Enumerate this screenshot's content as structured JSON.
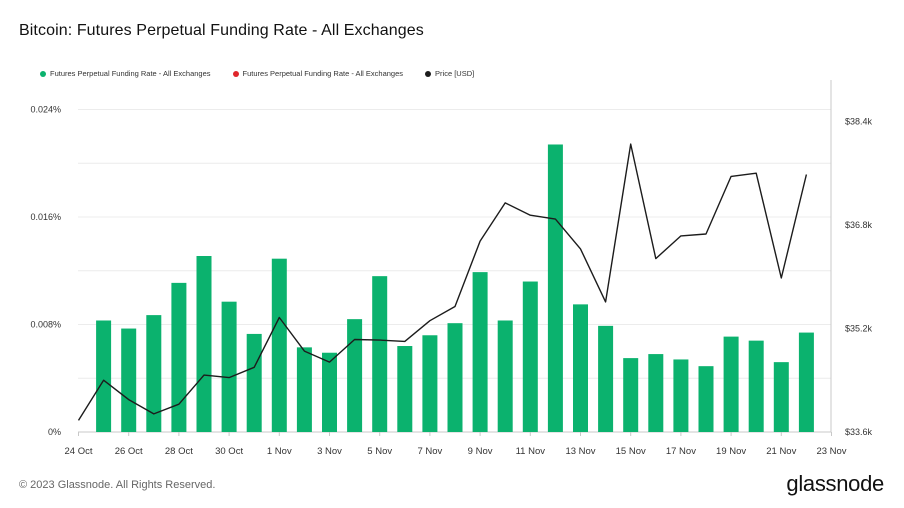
{
  "title": "Bitcoin: Futures Perpetual Funding Rate - All Exchanges",
  "footer": {
    "copyright": "© 2023 Glassnode. All Rights Reserved.",
    "brand": "glassnode"
  },
  "colors": {
    "positive": "#0bb26e",
    "negative": "#e0262b",
    "price": "#1c1c1c",
    "grid": "#ececec",
    "axis": "#c8c8c8"
  },
  "chart_data": {
    "type": "bar",
    "legend": [
      {
        "label": "Futures Perpetual Funding Rate - All Exchanges",
        "color": "#0bb26e"
      },
      {
        "label": "Futures Perpetual Funding Rate - All Exchanges",
        "color": "#e0262b"
      },
      {
        "label": "Price [USD]",
        "color": "#1c1c1c"
      }
    ],
    "x_ticks": [
      "24 Oct",
      "26 Oct",
      "28 Oct",
      "30 Oct",
      "1 Nov",
      "3 Nov",
      "5 Nov",
      "7 Nov",
      "9 Nov",
      "11 Nov",
      "13 Nov",
      "15 Nov",
      "17 Nov",
      "19 Nov",
      "21 Nov",
      "23 Nov"
    ],
    "y_left": {
      "ticks": [
        "0%",
        "0.008%",
        "0.016%",
        "0.024%"
      ],
      "tick_values": [
        0,
        0.008,
        0.016,
        0.024
      ],
      "ylim": [
        0,
        0.0262
      ]
    },
    "y_right": {
      "ticks": [
        "$33.6k",
        "$35.2k",
        "$36.8k",
        "$38.4k"
      ],
      "tick_values": [
        33600,
        35200,
        36800,
        38400
      ],
      "ylim": [
        33600,
        39040
      ]
    },
    "series": [
      {
        "name": "Futures Perpetual Funding Rate - All Exchanges",
        "kind": "bar",
        "x": [
          1,
          2,
          3,
          4,
          5,
          6,
          7,
          8,
          9,
          10,
          11,
          12,
          13,
          14,
          15,
          16,
          17,
          18,
          19,
          20,
          21,
          22,
          23,
          24,
          25,
          26,
          27,
          28,
          29
        ],
        "values": [
          0.0083,
          0.0077,
          0.0087,
          0.0111,
          0.0131,
          0.0097,
          0.0073,
          0.0129,
          0.0063,
          0.0059,
          0.0084,
          0.0116,
          0.0064,
          0.0072,
          0.0081,
          0.0119,
          0.0083,
          0.0112,
          0.0214,
          0.0095,
          0.0079,
          0.0055,
          0.0058,
          0.0054,
          0.0049,
          0.0071,
          0.0068,
          0.0052,
          0.0074
        ]
      },
      {
        "name": "Price [USD]",
        "kind": "line",
        "x": [
          0,
          1,
          2,
          3,
          4,
          5,
          6,
          7,
          8,
          9,
          10,
          11,
          12,
          13,
          14,
          15,
          16,
          17,
          18,
          19,
          20,
          21,
          22,
          23,
          24,
          25,
          26,
          27,
          28,
          29
        ],
        "values": [
          33780,
          34400,
          34100,
          33880,
          34030,
          34480,
          34440,
          34600,
          35370,
          34850,
          34680,
          35030,
          35020,
          35000,
          35320,
          35540,
          36550,
          37140,
          36950,
          36890,
          36430,
          35610,
          38050,
          36280,
          36630,
          36660,
          37550,
          37600,
          35980,
          37580
        ]
      }
    ]
  }
}
